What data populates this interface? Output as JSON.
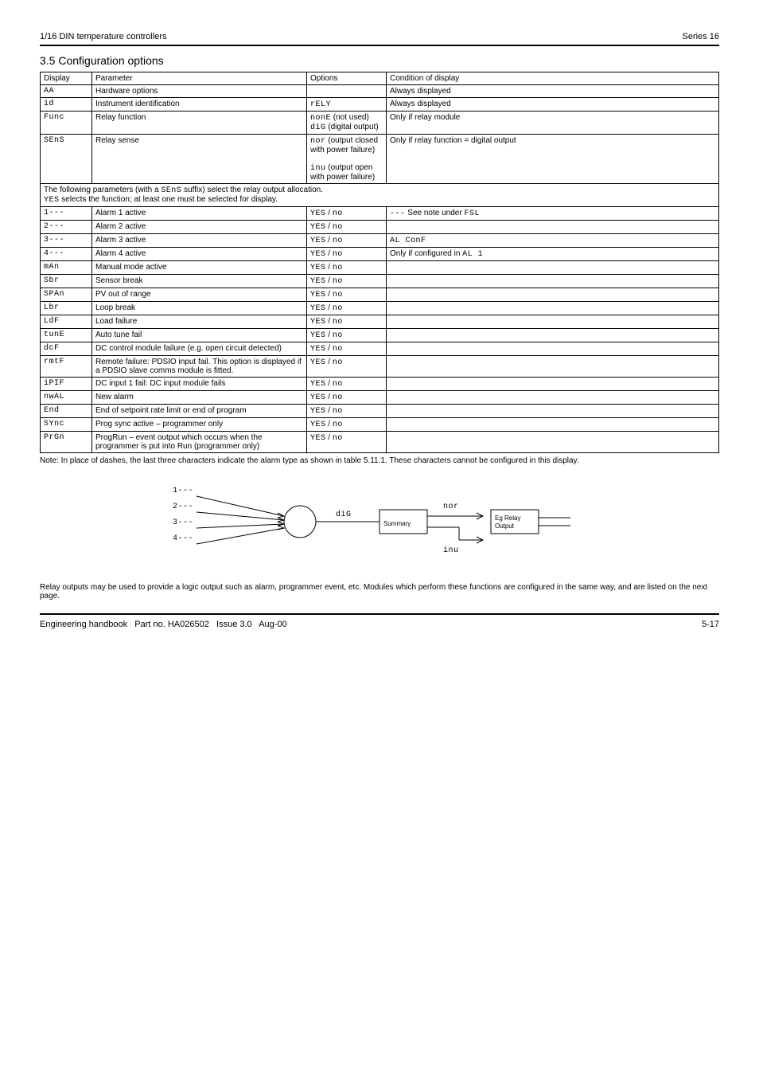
{
  "header": {
    "left": "1/16 DIN temperature controllers",
    "right": "Series 16"
  },
  "section1": {
    "title": "3.5 Configuration options",
    "table_head": {
      "display": "Display",
      "param": "Parameter",
      "options": "Options",
      "condition": "Condition of display"
    },
    "rows": [
      {
        "disp": "AA",
        "param": "Hardware options",
        "opt": "",
        "cond": "Always displayed"
      },
      {
        "disp": "id",
        "param": "Instrument identification",
        "opt_seg": "rELY",
        "opt_plain": "",
        "cond": "Always displayed"
      },
      {
        "disp": "Func",
        "param": "Relay function",
        "opt_seg1": "nonE",
        "opt_seg2": "diG",
        "opt_plain1": "(not used)",
        "opt_plain2": "(digital output)",
        "cond": "Only if relay module"
      },
      {
        "disp": "SEnS",
        "param": "Relay sense",
        "opt_seg1": "nor",
        "opt_seg2": "inu",
        "opt_plain1": "(output closed with power failure)",
        "opt_plain2": "(output open with power failure)",
        "cond": "Only if relay function = digital output"
      }
    ],
    "merged_note": {
      "l1_pre": "The following parameters (with a ",
      "l1_seg": "SEnS",
      "l1_post": " suffix) select the relay output allocation.",
      "l2_mid": "YES",
      "l2_post": " selects the function; at least one must be selected for display."
    },
    "yesno_rows": [
      {
        "disp": "1---",
        "param": "Alarm 1 active",
        "opt_seg": "YES",
        "opt_seg2": "no",
        "cond_seg": "---",
        "cond_pre": "See note under ",
        "cond_seg2": "FSL"
      },
      {
        "disp": "2---",
        "param": "Alarm 2 active",
        "opt_seg": "YES",
        "opt_seg2": "no",
        "cond": ""
      },
      {
        "disp": "3---",
        "param": "Alarm 3 active",
        "opt_seg": "YES",
        "opt_seg2": "no",
        "cond_seg": "AL ConF",
        "cond_mid": ""
      },
      {
        "disp": "4---",
        "param": "Alarm 4 active",
        "opt_seg": "YES",
        "opt_seg2": "no",
        "cond_pre": "Only if configured in ",
        "cond_seg": "AL 1"
      },
      {
        "disp": "mAn",
        "param": "Manual mode active",
        "opt_seg": "YES",
        "opt_seg2": "no",
        "cond": ""
      },
      {
        "disp": "Sbr",
        "param": "Sensor break",
        "opt_seg": "YES",
        "opt_seg2": "no",
        "cond": ""
      },
      {
        "disp": "SPAn",
        "param": "PV out of range",
        "opt_seg": "YES",
        "opt_seg2": "no",
        "cond": ""
      },
      {
        "disp": "Lbr",
        "param": "Loop break",
        "opt_seg": "YES",
        "opt_seg2": "no",
        "cond": ""
      },
      {
        "disp": "LdF",
        "param": "Load failure",
        "opt_seg": "YES",
        "opt_seg2": "no",
        "cond": ""
      },
      {
        "disp": "tunE",
        "param": "Auto tune fail",
        "opt_seg": "YES",
        "opt_seg2": "no",
        "cond": ""
      },
      {
        "disp": "dcF",
        "param": "DC control module failure (e.g. open circuit detected)",
        "opt_seg": "YES",
        "opt_seg2": "no",
        "cond": ""
      },
      {
        "disp": "rmtF",
        "param": "Remote failure: PDSIO input fail. This option is displayed if a PDSIO slave comms module is fitted.",
        "opt_seg": "YES",
        "opt_seg2": "no",
        "cond": ""
      },
      {
        "disp": "iPIF",
        "param": "DC input 1 fail: DC input module fails",
        "opt_seg": "YES",
        "opt_seg2": "no",
        "cond": ""
      },
      {
        "disp": "nwAL",
        "param": "New alarm",
        "opt_seg": "YES",
        "opt_seg2": "no",
        "cond": ""
      },
      {
        "disp": "End",
        "param": "End of setpoint rate limit or end of program",
        "opt_seg": "YES",
        "opt_seg2": "no",
        "cond": ""
      },
      {
        "disp": "SYnc",
        "param": "Prog sync active – programmer only",
        "opt_seg": "YES",
        "opt_seg2": "no",
        "cond": ""
      },
      {
        "disp": "PrGn",
        "param": "ProgRun – event output which occurs when the programmer is put into Run (programmer only)",
        "opt_seg": "YES",
        "opt_seg2": "no",
        "cond": ""
      }
    ]
  },
  "note": "Note: In place of dashes, the last three characters indicate the alarm type as shown in table 5.11.1. These characters cannot be configured in this display.",
  "diagram": {
    "inputs": [
      "1---",
      "2---",
      "3---",
      "4---"
    ],
    "label_dig": "diG",
    "summary": "Summary output",
    "nor": "nor",
    "inu": "inu",
    "output": "Eg Relay Output"
  },
  "post_diagram": "Relay outputs may be used to provide a logic output such as alarm, programmer event, etc. Modules which perform these functions are configured in the same way, and are listed on the next page.",
  "footer": {
    "doc": "Engineering handbook",
    "part": "Part no. HA026502",
    "issue": "Issue 3.0",
    "date": "Aug-00",
    "page": "5-17"
  }
}
